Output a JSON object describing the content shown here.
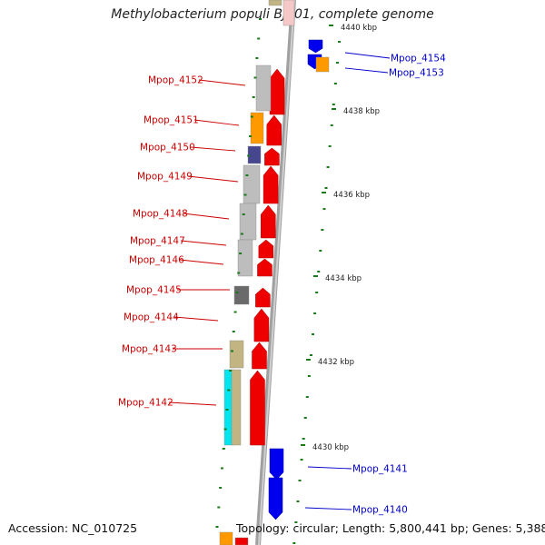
{
  "title": "Methylobacterium populi BJ001, complete genome",
  "accession": "Accession: NC_010725",
  "topology": "Topology: circular; Length: 5,800,441 bp; Genes: 5,388",
  "colors": {
    "forward_cds": "#ee0000",
    "reverse_cds": "#0000ee",
    "label_forward": "#cc0000",
    "label_reverse": "#0000cc",
    "tick_green": "#1a7a1a",
    "backbone": "#9a9a9a"
  },
  "scale_labels": [
    "4440 kbp",
    "4438 kbp",
    "4436 kbp",
    "4434 kbp",
    "4432 kbp",
    "4430 kbp"
  ],
  "genes_forward": [
    "Mpop_4152",
    "Mpop_4151",
    "Mpop_4150",
    "Mpop_4149",
    "Mpop_4148",
    "Mpop_4147",
    "Mpop_4146",
    "Mpop_4145",
    "Mpop_4144",
    "Mpop_4143",
    "Mpop_4142"
  ],
  "genes_reverse": [
    "Mpop_4154",
    "Mpop_4153",
    "Mpop_4141",
    "Mpop_4140"
  ]
}
